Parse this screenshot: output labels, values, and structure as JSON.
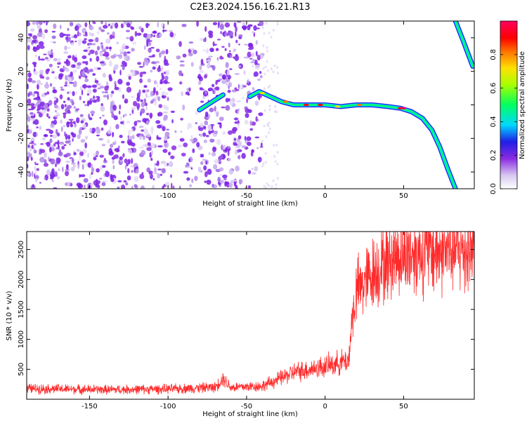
{
  "title": "C2E3.2024.156.16.21.R13",
  "chart_data": [
    {
      "type": "heatmap",
      "xlabel": "Height of straight line (km)",
      "ylabel": "Frequency (Hz)",
      "xlim": [
        -190,
        95
      ],
      "ylim": [
        -50,
        50
      ],
      "xticks": [
        -150,
        -100,
        -50,
        0,
        50
      ],
      "yticks": [
        -40,
        -20,
        0,
        20,
        40
      ],
      "colorbar": {
        "label": "Normalized spectral amplitude",
        "range": [
          0,
          1
        ],
        "ticks": [
          0.0,
          0.2,
          0.4,
          0.6,
          0.8
        ],
        "colors": [
          "#ffffff",
          "#d8c8f0",
          "#8a2be2",
          "#1e1ee6",
          "#00d8ff",
          "#00ff60",
          "#a8ff00",
          "#ffe000",
          "#ff7000",
          "#ff0000",
          "#ff0060"
        ]
      },
      "noise_region": {
        "x": [
          -190,
          -40
        ],
        "y": [
          -50,
          50
        ]
      },
      "ridge": [
        {
          "x": -80,
          "y": -3
        },
        {
          "x": -75,
          "y": 0
        },
        {
          "x": -70,
          "y": 3
        },
        {
          "x": -65,
          "y": 6
        },
        {
          "x": -48,
          "y": 5
        },
        {
          "x": -42,
          "y": 8
        },
        {
          "x": -35,
          "y": 5
        },
        {
          "x": -28,
          "y": 2
        },
        {
          "x": -20,
          "y": 0
        },
        {
          "x": -10,
          "y": 0
        },
        {
          "x": 0,
          "y": 0
        },
        {
          "x": 10,
          "y": -1
        },
        {
          "x": 20,
          "y": 0
        },
        {
          "x": 30,
          "y": 0
        },
        {
          "x": 40,
          "y": -1
        },
        {
          "x": 48,
          "y": -2
        },
        {
          "x": 55,
          "y": -4
        },
        {
          "x": 62,
          "y": -8
        },
        {
          "x": 68,
          "y": -15
        },
        {
          "x": 73,
          "y": -25
        },
        {
          "x": 78,
          "y": -38
        },
        {
          "x": 83,
          "y": -50
        }
      ],
      "ridge_upper": [
        {
          "x": 83,
          "y": 50
        },
        {
          "x": 88,
          "y": 38
        },
        {
          "x": 94,
          "y": 23
        }
      ]
    },
    {
      "type": "line",
      "xlabel": "Height of straight line (km)",
      "ylabel": "SNR (10 * v/v)",
      "xlim": [
        -190,
        95
      ],
      "ylim": [
        0,
        2800
      ],
      "xticks": [
        -150,
        -100,
        -50,
        0,
        50
      ],
      "yticks": [
        500,
        1000,
        1500,
        2000,
        2500
      ],
      "color": "#ff2a2a",
      "trend": [
        {
          "x": -190,
          "y": 180
        },
        {
          "x": -140,
          "y": 160
        },
        {
          "x": -100,
          "y": 170
        },
        {
          "x": -70,
          "y": 200
        },
        {
          "x": -65,
          "y": 350
        },
        {
          "x": -60,
          "y": 200
        },
        {
          "x": -40,
          "y": 220
        },
        {
          "x": -30,
          "y": 330
        },
        {
          "x": -20,
          "y": 450
        },
        {
          "x": 0,
          "y": 550
        },
        {
          "x": 15,
          "y": 650
        },
        {
          "x": 17,
          "y": 1300
        },
        {
          "x": 20,
          "y": 1800
        },
        {
          "x": 30,
          "y": 2100
        },
        {
          "x": 45,
          "y": 2400
        },
        {
          "x": 60,
          "y": 2450
        },
        {
          "x": 95,
          "y": 2500
        }
      ]
    }
  ]
}
